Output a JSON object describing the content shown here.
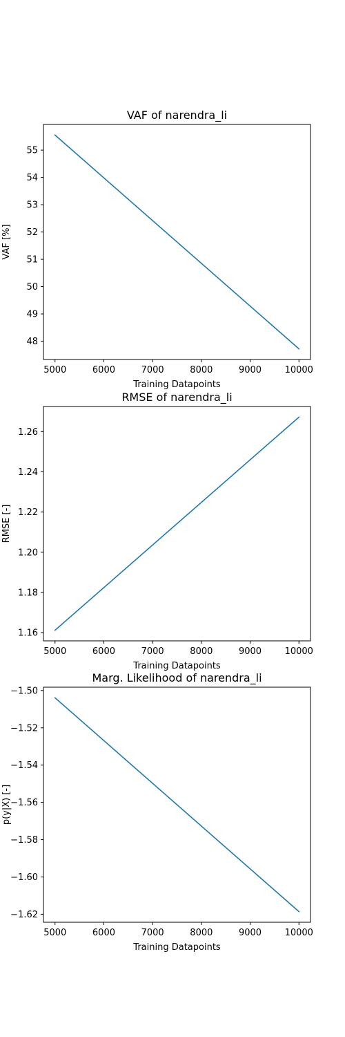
{
  "figure": {
    "line_color": "#1f77b4",
    "background": "#ffffff"
  },
  "chart_data": [
    {
      "type": "line",
      "title": "VAF of narendra_li",
      "xlabel": "Training Datapoints",
      "ylabel": "VAF [%]",
      "x": [
        5000,
        10000
      ],
      "series": [
        {
          "values": [
            55.55,
            47.72
          ]
        }
      ],
      "xlim": [
        4763,
        10237
      ],
      "ylim": [
        47.33,
        55.94
      ],
      "xticks": [
        "5000",
        "6000",
        "7000",
        "8000",
        "9000",
        "10000"
      ],
      "yticks": [
        "48",
        "49",
        "50",
        "51",
        "52",
        "53",
        "54",
        "55"
      ],
      "grid": false
    },
    {
      "type": "line",
      "title": "RMSE of narendra_li",
      "xlabel": "Training Datapoints",
      "ylabel": "RMSE [-]",
      "x": [
        5000,
        10000
      ],
      "series": [
        {
          "values": [
            1.1612,
            1.2672
          ]
        }
      ],
      "xlim": [
        4763,
        10237
      ],
      "ylim": [
        1.1559,
        1.2725
      ],
      "xticks": [
        "5000",
        "6000",
        "7000",
        "8000",
        "9000",
        "10000"
      ],
      "yticks": [
        "1.16",
        "1.18",
        "1.20",
        "1.22",
        "1.24",
        "1.26"
      ],
      "grid": false
    },
    {
      "type": "line",
      "title": "Marg. Likelihood of narendra_li",
      "xlabel": "Training Datapoints",
      "ylabel": "p(y|X) [-]",
      "x": [
        5000,
        10000
      ],
      "series": [
        {
          "values": [
            -1.5039,
            -1.6186
          ]
        }
      ],
      "xlim": [
        4763,
        10237
      ],
      "ylim": [
        -1.6243,
        -1.4982
      ],
      "xticks": [
        "5000",
        "6000",
        "7000",
        "8000",
        "9000",
        "10000"
      ],
      "yticks": [
        "−1.50",
        "−1.52",
        "−1.54",
        "−1.56",
        "−1.58",
        "−1.60",
        "−1.62"
      ],
      "grid": false
    }
  ]
}
